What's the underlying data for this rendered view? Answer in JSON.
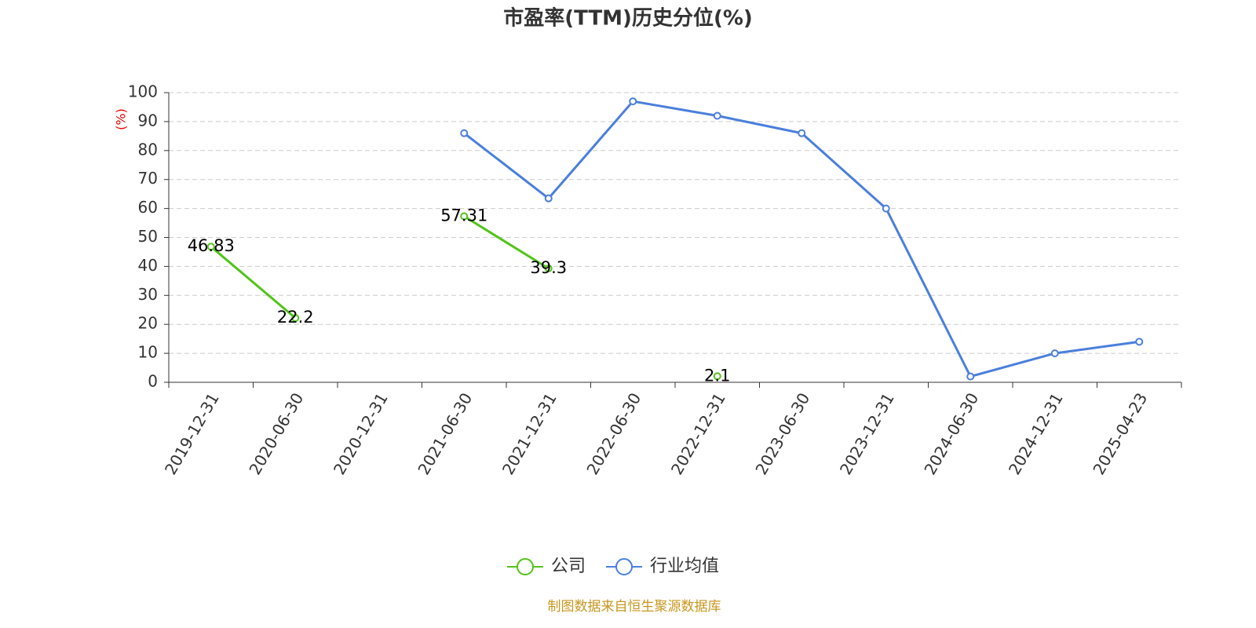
{
  "chart_data": {
    "type": "line",
    "title": "市盈率(TTM)历史分位(%)",
    "y_label": "(%)",
    "categories": [
      "2019-12-31",
      "2020-06-30",
      "2020-12-31",
      "2021-06-30",
      "2021-12-31",
      "2022-06-30",
      "2022-12-31",
      "2023-06-30",
      "2023-12-31",
      "2024-06-30",
      "2024-12-31",
      "2025-04-23"
    ],
    "series": [
      {
        "name": "公司",
        "color": "#52c41a",
        "values": [
          46.83,
          22.2,
          null,
          57.31,
          39.3,
          null,
          2.1,
          null,
          null,
          null,
          null,
          null
        ],
        "data_labels": true
      },
      {
        "name": "行业均值",
        "color": "#4a7fdc",
        "values": [
          null,
          null,
          null,
          86,
          63.5,
          97,
          92,
          86,
          60,
          2,
          10,
          14
        ],
        "data_labels": false
      }
    ],
    "ylim": [
      0,
      100
    ],
    "yticks": [
      0,
      10,
      20,
      30,
      40,
      50,
      60,
      70,
      80,
      90,
      100
    ],
    "grid": true,
    "legend": "bottom",
    "source": "制图数据来自恒生聚源数据库"
  }
}
